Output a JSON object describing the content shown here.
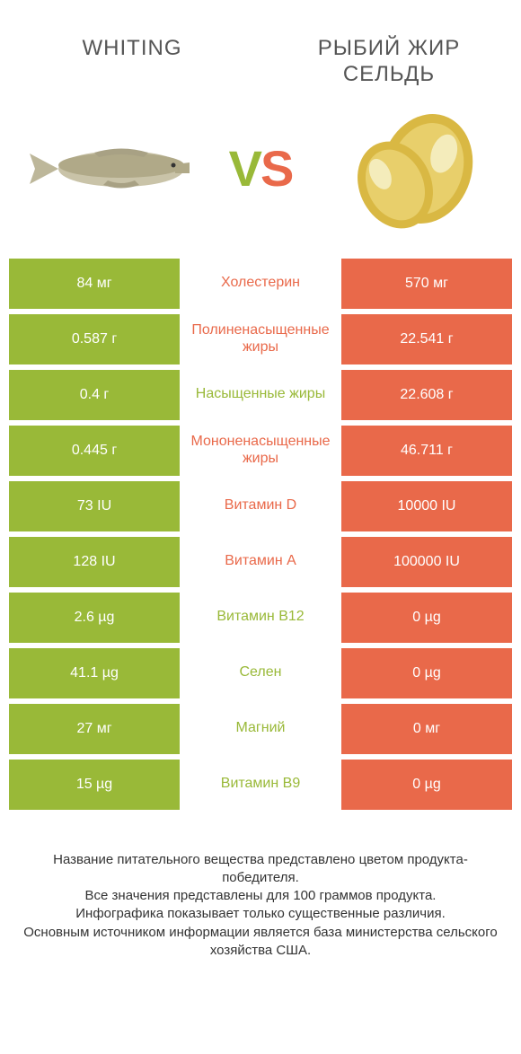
{
  "colors": {
    "green": "#99b938",
    "orange": "#e9694a",
    "text": "#333333",
    "mid_text_green": "#99b938",
    "mid_text_orange": "#e9694a"
  },
  "header": {
    "left_title": "WHITING",
    "right_title": "РЫБИЙ ЖИР СЕЛЬДЬ",
    "vs_v": "V",
    "vs_s": "S"
  },
  "rows": [
    {
      "left": "84 мг",
      "mid": "Холестерин",
      "right": "570 мг",
      "winner": "right"
    },
    {
      "left": "0.587 г",
      "mid": "Полиненасыщенные жиры",
      "right": "22.541 г",
      "winner": "right"
    },
    {
      "left": "0.4 г",
      "mid": "Насыщенные жиры",
      "right": "22.608 г",
      "winner": "left"
    },
    {
      "left": "0.445 г",
      "mid": "Мононенасыщенные жиры",
      "right": "46.711 г",
      "winner": "right"
    },
    {
      "left": "73 IU",
      "mid": "Витамин D",
      "right": "10000 IU",
      "winner": "right"
    },
    {
      "left": "128 IU",
      "mid": "Витамин A",
      "right": "100000 IU",
      "winner": "right"
    },
    {
      "left": "2.6 µg",
      "mid": "Витамин B12",
      "right": "0 µg",
      "winner": "left"
    },
    {
      "left": "41.1 µg",
      "mid": "Селен",
      "right": "0 µg",
      "winner": "left"
    },
    {
      "left": "27 мг",
      "mid": "Магний",
      "right": "0 мг",
      "winner": "left"
    },
    {
      "left": "15 µg",
      "mid": "Витамин B9",
      "right": "0 µg",
      "winner": "left"
    }
  ],
  "footer": {
    "line1": "Название питательного вещества представлено цветом продукта-победителя.",
    "line2": "Все значения представлены для 100 граммов продукта.",
    "line3": "Инфографика показывает только существенные различия.",
    "line4": "Основным источником информации является база министерства сельского хозяйства США."
  }
}
